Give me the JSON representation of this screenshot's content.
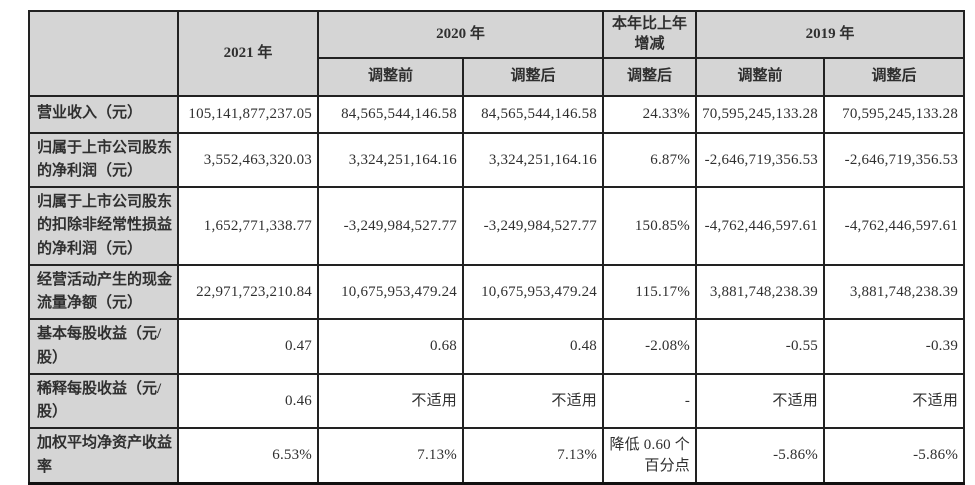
{
  "table": {
    "header": {
      "corner": "",
      "col_2021": "2021 年",
      "col_2020": "2020 年",
      "col_change": "本年比上年增减",
      "col_2019": "2019 年",
      "sub_2020_before": "调整前",
      "sub_2020_after": "调整后",
      "sub_change_after": "调整后",
      "sub_2019_before": "调整前",
      "sub_2019_after": "调整后"
    },
    "rows": [
      {
        "label": "营业收入（元）",
        "y2021": "105,141,877,237.05",
        "y2020_before": "84,565,544,146.58",
        "y2020_after": "84,565,544,146.58",
        "change": "24.33%",
        "y2019_before": "70,595,245,133.28",
        "y2019_after": "70,595,245,133.28"
      },
      {
        "label": "归属于上市公司股东的净利润（元）",
        "y2021": "3,552,463,320.03",
        "y2020_before": "3,324,251,164.16",
        "y2020_after": "3,324,251,164.16",
        "change": "6.87%",
        "y2019_before": "-2,646,719,356.53",
        "y2019_after": "-2,646,719,356.53"
      },
      {
        "label": "归属于上市公司股东的扣除非经常性损益的净利润（元）",
        "y2021": "1,652,771,338.77",
        "y2020_before": "-3,249,984,527.77",
        "y2020_after": "-3,249,984,527.77",
        "change": "150.85%",
        "y2019_before": "-4,762,446,597.61",
        "y2019_after": "-4,762,446,597.61"
      },
      {
        "label": "经营活动产生的现金流量净额（元）",
        "y2021": "22,971,723,210.84",
        "y2020_before": "10,675,953,479.24",
        "y2020_after": "10,675,953,479.24",
        "change": "115.17%",
        "y2019_before": "3,881,748,238.39",
        "y2019_after": "3,881,748,238.39"
      },
      {
        "label": "基本每股收益（元/股）",
        "y2021": "0.47",
        "y2020_before": "0.68",
        "y2020_after": "0.48",
        "change": "-2.08%",
        "y2019_before": "-0.55",
        "y2019_after": "-0.39"
      },
      {
        "label": "稀释每股收益（元/股）",
        "y2021": "0.46",
        "y2020_before": "不适用",
        "y2020_after": "不适用",
        "change": "-",
        "y2019_before": "不适用",
        "y2019_after": "不适用"
      },
      {
        "label": "加权平均净资产收益率",
        "y2021": "6.53%",
        "y2020_before": "7.13%",
        "y2020_after": "7.13%",
        "change": "降低 0.60 个百分点",
        "y2019_before": "-5.86%",
        "y2019_after": "-5.86%"
      }
    ],
    "colors": {
      "header_bg": "#d5d5d5",
      "border": "#222222",
      "text": "#2f2f2f",
      "cell_bg": "#ffffff"
    }
  }
}
